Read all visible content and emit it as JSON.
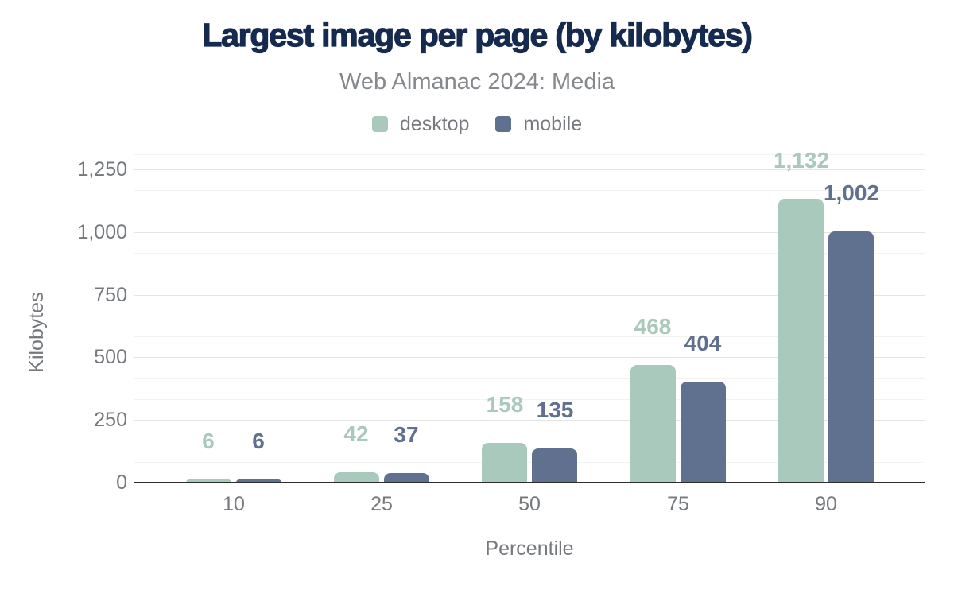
{
  "chart_data": {
    "type": "bar",
    "title": "Largest image per page (by kilobytes)",
    "subtitle": "Web Almanac 2024: Media",
    "xlabel": "Percentile",
    "ylabel": "Kilobytes",
    "categories": [
      "10",
      "25",
      "50",
      "75",
      "90"
    ],
    "series": [
      {
        "name": "desktop",
        "color": "#a8c9bb",
        "values": [
          6,
          42,
          158,
          468,
          1132
        ],
        "value_labels": [
          "6",
          "42",
          "158",
          "468",
          "1,132"
        ]
      },
      {
        "name": "mobile",
        "color": "#5f718e",
        "values": [
          6,
          37,
          135,
          404,
          1002
        ],
        "value_labels": [
          "6",
          "37",
          "135",
          "404",
          "1,002"
        ]
      }
    ],
    "ylim": [
      0,
      1283
    ],
    "yticks": [
      {
        "value": 0,
        "label": "0"
      },
      {
        "value": 250,
        "label": "250"
      },
      {
        "value": 500,
        "label": "500"
      },
      {
        "value": 750,
        "label": "750"
      },
      {
        "value": 1000,
        "label": "1,000"
      },
      {
        "value": 1250,
        "label": "1,250"
      }
    ],
    "minor_tick_interval": 83.333,
    "grid": true,
    "legend_position": "top"
  },
  "colors": {
    "background": "#ffffff",
    "title": "#152a4e",
    "subtitle_text": "#85888c",
    "axis_text": "#75787c",
    "gridline_major": "#e4e4e4",
    "gridline_minor": "#f3f3f3",
    "axis_line": "#2d2d2d",
    "desktop_series": "#a8c9bb",
    "mobile_series": "#5f718e"
  }
}
